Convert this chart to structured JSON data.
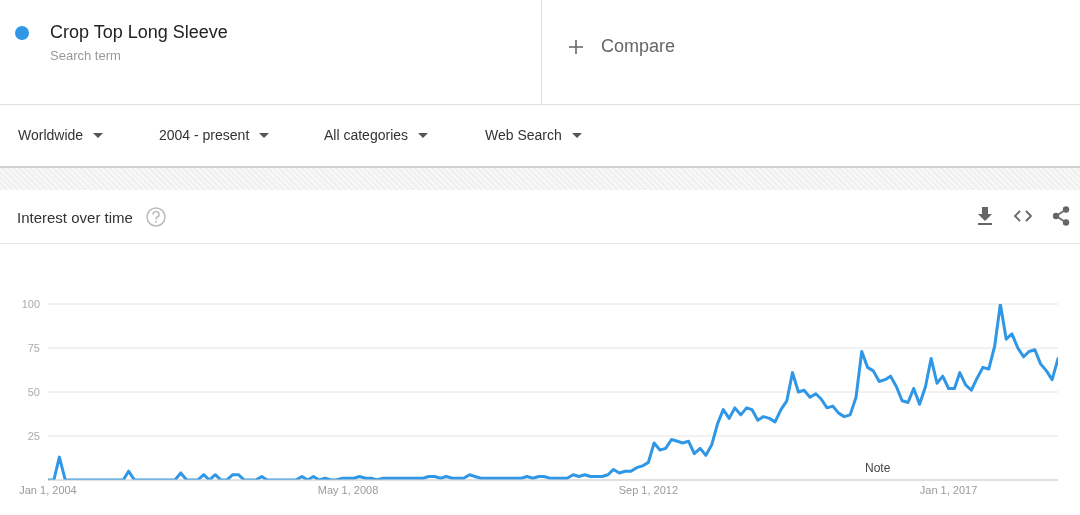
{
  "chart_data": {
    "type": "line",
    "title": "Interest over time",
    "x": [
      "2004-01",
      "2004-02",
      "2004-03",
      "2004-04",
      "2004-05",
      "2004-06",
      "2004-07",
      "2004-08",
      "2004-09",
      "2004-10",
      "2004-11",
      "2004-12",
      "2005-01",
      "2005-02",
      "2005-03",
      "2005-04",
      "2005-05",
      "2005-06",
      "2005-07",
      "2005-08",
      "2005-09",
      "2005-10",
      "2005-11",
      "2005-12",
      "2006-01",
      "2006-02",
      "2006-03",
      "2006-04",
      "2006-05",
      "2006-06",
      "2006-07",
      "2006-08",
      "2006-09",
      "2006-10",
      "2006-11",
      "2006-12",
      "2007-01",
      "2007-02",
      "2007-03",
      "2007-04",
      "2007-05",
      "2007-06",
      "2007-07",
      "2007-08",
      "2007-09",
      "2007-10",
      "2007-11",
      "2007-12",
      "2008-01",
      "2008-02",
      "2008-03",
      "2008-04",
      "2008-05",
      "2008-06",
      "2008-07",
      "2008-08",
      "2008-09",
      "2008-10",
      "2008-11",
      "2008-12",
      "2009-01",
      "2009-02",
      "2009-03",
      "2009-04",
      "2009-05",
      "2009-06",
      "2009-07",
      "2009-08",
      "2009-09",
      "2009-10",
      "2009-11",
      "2009-12",
      "2010-01",
      "2010-02",
      "2010-03",
      "2010-04",
      "2010-05",
      "2010-06",
      "2010-07",
      "2010-08",
      "2010-09",
      "2010-10",
      "2010-11",
      "2010-12",
      "2011-01",
      "2011-02",
      "2011-03",
      "2011-04",
      "2011-05",
      "2011-06",
      "2011-07",
      "2011-08",
      "2011-09",
      "2011-10",
      "2011-11",
      "2011-12",
      "2012-01",
      "2012-02",
      "2012-03",
      "2012-04",
      "2012-05",
      "2012-06",
      "2012-07",
      "2012-08",
      "2012-09",
      "2012-10",
      "2012-11",
      "2012-12",
      "2013-01",
      "2013-02",
      "2013-03",
      "2013-04",
      "2013-05",
      "2013-06",
      "2013-07",
      "2013-08",
      "2013-09",
      "2013-10",
      "2013-11",
      "2013-12",
      "2014-01",
      "2014-02",
      "2014-03",
      "2014-04",
      "2014-05",
      "2014-06",
      "2014-07",
      "2014-08",
      "2014-09",
      "2014-10",
      "2014-11",
      "2014-12",
      "2015-01",
      "2015-02",
      "2015-03",
      "2015-04",
      "2015-05",
      "2015-06",
      "2015-07",
      "2015-08",
      "2015-09",
      "2015-10",
      "2015-11",
      "2015-12",
      "2016-01",
      "2016-02",
      "2016-03",
      "2016-04",
      "2016-05",
      "2016-06",
      "2016-07",
      "2016-08",
      "2016-09",
      "2016-10",
      "2016-11",
      "2016-12",
      "2017-01",
      "2017-02",
      "2017-03",
      "2017-04",
      "2017-05",
      "2017-06",
      "2017-07",
      "2017-08",
      "2017-09",
      "2017-10",
      "2017-11",
      "2017-12",
      "2018-01",
      "2018-02",
      "2018-03",
      "2018-04",
      "2018-05",
      "2018-06",
      "2018-07",
      "2018-08"
    ],
    "series": [
      {
        "name": "Crop Top Long Sleeve",
        "color": "#2f97e6",
        "values": [
          0,
          0,
          13,
          0,
          0,
          0,
          0,
          0,
          0,
          0,
          0,
          0,
          0,
          0,
          5,
          0,
          0,
          0,
          0,
          0,
          0,
          0,
          0,
          4,
          0,
          0,
          0,
          3,
          0,
          3,
          0,
          0,
          3,
          3,
          0,
          0,
          0,
          2,
          0,
          0,
          0,
          0,
          0,
          0,
          2,
          0,
          2,
          0,
          1,
          0,
          0,
          1,
          1,
          1,
          2,
          1,
          1,
          0,
          1,
          1,
          1,
          1,
          1,
          1,
          1,
          1,
          2,
          2,
          1,
          2,
          1,
          1,
          1,
          3,
          2,
          1,
          1,
          1,
          1,
          1,
          1,
          1,
          1,
          2,
          1,
          2,
          2,
          1,
          1,
          1,
          1,
          3,
          2,
          3,
          2,
          2,
          2,
          3,
          6,
          4,
          5,
          5,
          7,
          8,
          10,
          21,
          17,
          18,
          23,
          22,
          21,
          22,
          15,
          18,
          14,
          20,
          32,
          40,
          35,
          41,
          37,
          41,
          40,
          34,
          36,
          35,
          33,
          40,
          45,
          61,
          50,
          51,
          47,
          49,
          46,
          41,
          42,
          38,
          36,
          37,
          47,
          73,
          64,
          62,
          56,
          57,
          59,
          53,
          45,
          44,
          52,
          43,
          53,
          69,
          55,
          59,
          52,
          52,
          61,
          54,
          51,
          58,
          64,
          63,
          76,
          100,
          80,
          83,
          75,
          70,
          73,
          74,
          66,
          62,
          57,
          69
        ]
      }
    ],
    "xlim": [
      "2004-01",
      "2018-08"
    ],
    "xticks": [
      {
        "value": "2004-01-01",
        "label": "Jan 1, 2004"
      },
      {
        "value": "2008-05-01",
        "label": "May 1, 2008"
      },
      {
        "value": "2012-09-01",
        "label": "Sep 1, 2012"
      },
      {
        "value": "2017-01-01",
        "label": "Jan 1, 2017"
      }
    ],
    "ylim": [
      0,
      100
    ],
    "yticks": [
      25,
      50,
      75,
      100
    ],
    "grid": "y",
    "legend": "top left",
    "annotations": [
      "Search term",
      "Compare",
      "Worldwide",
      "2004 - present",
      "All categories",
      "Web Search",
      "Note"
    ]
  }
}
